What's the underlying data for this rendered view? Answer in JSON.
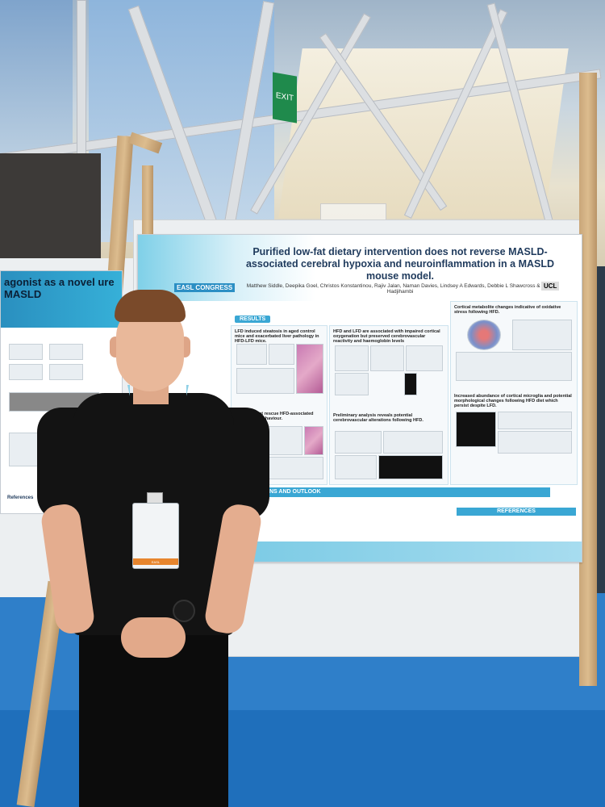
{
  "poster": {
    "title": "Purified low-fat dietary intervention does not reverse MASLD-associated cerebral hypoxia and neuroinflammation in a MASLD mouse model.",
    "authors": "Matthew Siddle, Deepika Goel, Christos Konstantinou, Rajiv Jalan, Naman Davies, Lindsey A Edwards, Debbie L Shawcross & Anna Hadjihambi",
    "congress": "EASL CONGRESS",
    "institution": "UCL",
    "sections": {
      "results": "RESULTS",
      "conclusions": "CONCLUSIONS AND OUTLOOK",
      "references": "REFERENCES"
    },
    "panels": [
      "LFD induced steatosis in aged control mice and exacerbated liver pathology in HFD-LFD mice.",
      "HFD and LFD are associated with impaired cortical oxygenation but preserved cerebrovascular reactivity and haemoglobin levels",
      "Cortical metabolite changes indicative of oxidative stress following HFD.",
      "LFD does not rescue HFD-associated anxiety-like behaviour.",
      "Preliminary analysis reveals potential cerebrovascular alterations following HFD.",
      "Increased abundance of cortical microglia and potential morphological changes following HFD diet which persist despite LFD."
    ]
  },
  "left_poster": {
    "title_fragment": "agonist as a novel ure MASLD",
    "references": "References"
  },
  "badge": {
    "label": "EASL"
  },
  "exit_sign": {
    "label": "EXIT"
  }
}
